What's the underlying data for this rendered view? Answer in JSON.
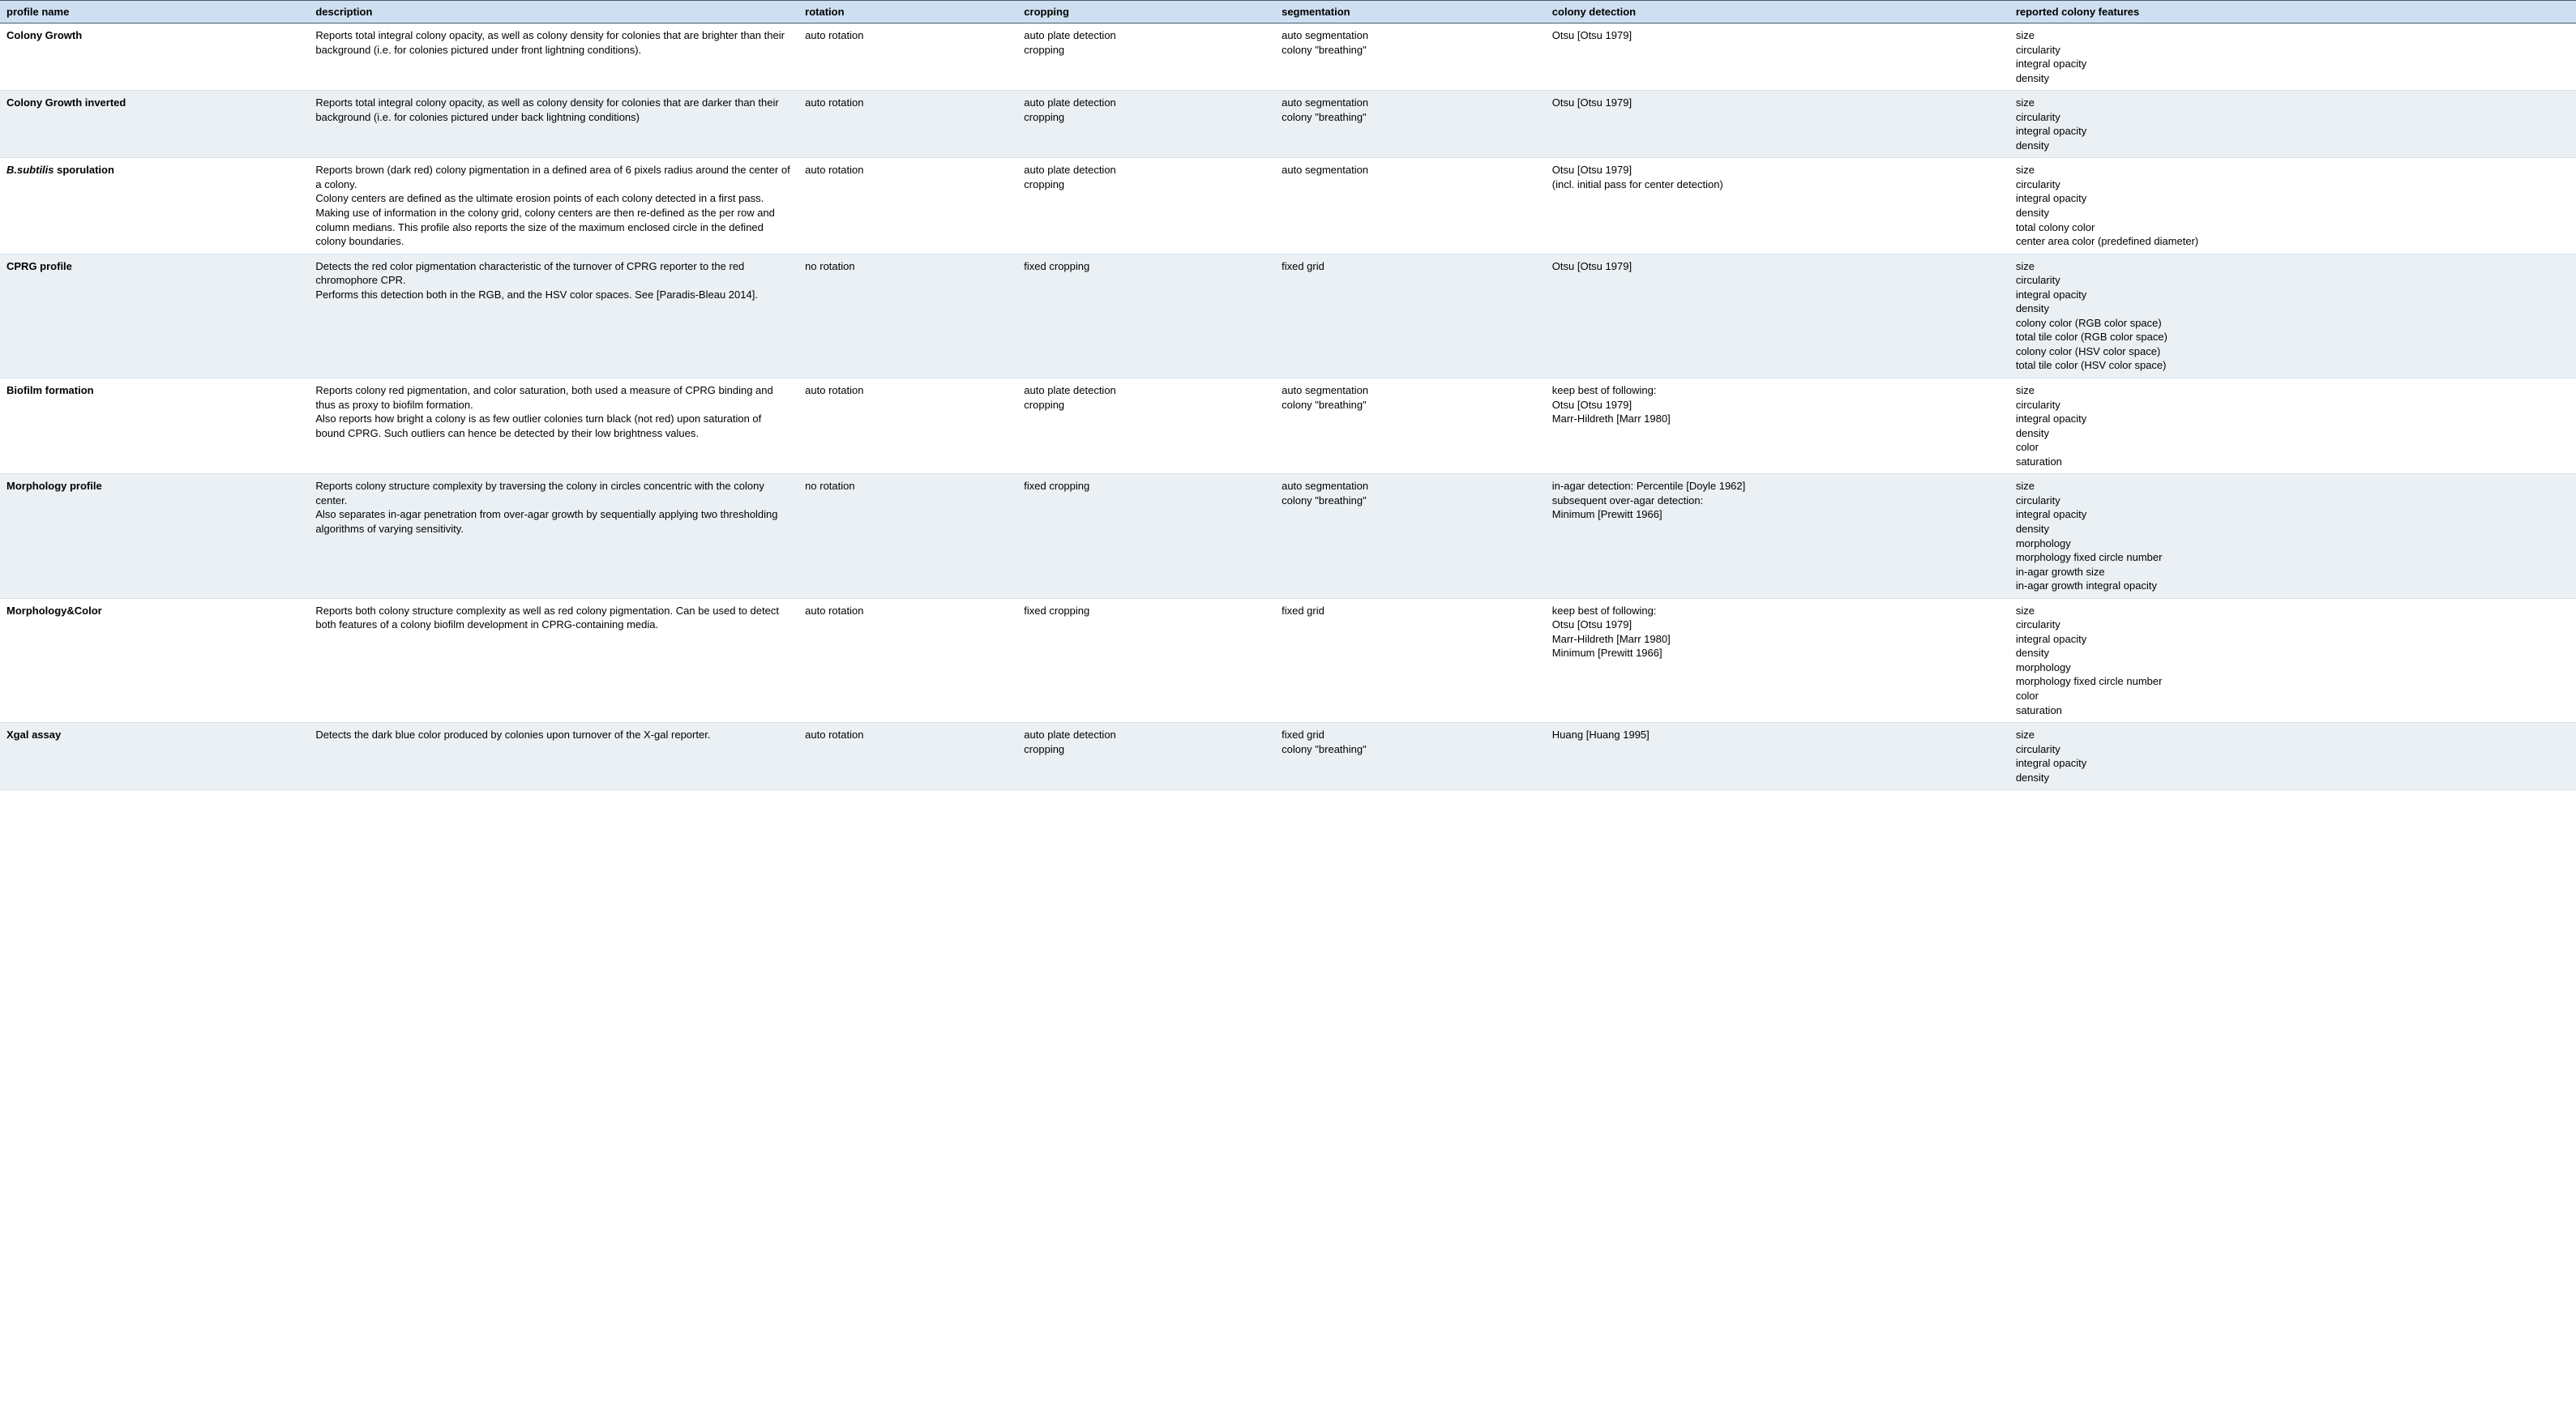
{
  "table": {
    "header_bg": "#cddff0",
    "row_even_bg": "#eaf0f4",
    "row_odd_bg": "#ffffff",
    "border_color": "#4a5a6a",
    "text_color": "#000000",
    "font_family": "Helvetica, Arial, sans-serif",
    "font_size_pt": 10,
    "columns": [
      {
        "key": "name",
        "label": "profile name",
        "width_pct": 12
      },
      {
        "key": "desc",
        "label": "description",
        "width_pct": 19
      },
      {
        "key": "rotation",
        "label": "rotation",
        "width_pct": 8.5
      },
      {
        "key": "cropping",
        "label": "cropping",
        "width_pct": 10
      },
      {
        "key": "seg",
        "label": "segmentation",
        "width_pct": 10.5
      },
      {
        "key": "det",
        "label": "colony detection",
        "width_pct": 18
      },
      {
        "key": "features",
        "label": "reported colony features",
        "width_pct": 22
      }
    ],
    "rows": [
      {
        "name": "Colony Growth",
        "desc": "Reports total integral colony opacity, as well as colony density for colonies that are brighter than their background (i.e. for colonies pictured under front lightning conditions).",
        "rotation": "auto rotation",
        "cropping": "auto plate detection\ncropping",
        "seg": "auto segmentation\ncolony \"breathing\"",
        "det": "Otsu [Otsu 1979]",
        "features": "size\ncircularity\nintegral opacity\ndensity"
      },
      {
        "name": "Colony Growth inverted",
        "desc": "Reports total integral colony opacity, as well as colony density for colonies that are darker than their background (i.e. for colonies pictured under back lightning conditions)",
        "rotation": "auto rotation",
        "cropping": "auto plate detection\ncropping",
        "seg": "auto segmentation\ncolony \"breathing\"",
        "det": "Otsu [Otsu 1979]",
        "features": "size\ncircularity\nintegral opacity\ndensity"
      },
      {
        "name_html": "<span class=\"ital\">B.subtilis</span> sporulation",
        "name": "B.subtilis sporulation",
        "desc": "Reports brown (dark red) colony pigmentation in a defined area of 6 pixels radius around the center of a colony.\nColony centers are defined as the ultimate erosion points of each colony detected in a first pass. Making use of information in the colony grid, colony centers are then re-defined as the per row and column medians. This profile also reports the size of the maximum enclosed circle in the defined colony boundaries.",
        "rotation": "auto rotation",
        "cropping": "auto plate detection\ncropping",
        "seg": "auto segmentation",
        "det": "Otsu [Otsu 1979]\n(incl. initial pass for center detection)",
        "features": "size\ncircularity\nintegral opacity\ndensity\ntotal colony color\ncenter area color (predefined diameter)"
      },
      {
        "name": "CPRG profile",
        "desc": "Detects the red color pigmentation characteristic of the turnover of CPRG reporter to the red chromophore CPR.\nPerforms this detection both in the RGB, and the HSV color spaces. See [Paradis-Bleau 2014].",
        "rotation": "no rotation",
        "cropping": "fixed cropping",
        "seg": "fixed grid",
        "det": "Otsu [Otsu 1979]",
        "features": "size\ncircularity\nintegral opacity\ndensity\ncolony color (RGB color space)\ntotal tile color (RGB color space)\ncolony color (HSV color space)\ntotal tile color (HSV color space)"
      },
      {
        "name": "Biofilm formation",
        "desc": "Reports colony red pigmentation, and color saturation, both used a measure of CPRG binding and thus as proxy to biofilm formation.\nAlso reports how bright a colony is as few outlier colonies turn black (not red) upon saturation of bound CPRG. Such outliers can hence be detected by their low brightness values.",
        "rotation": "auto rotation",
        "cropping": "auto plate detection\ncropping",
        "seg": "auto segmentation\ncolony \"breathing\"",
        "det": "keep best of following:\nOtsu [Otsu 1979]\nMarr-Hildreth [Marr 1980]",
        "features": "size\ncircularity\nintegral opacity\ndensity\ncolor\nsaturation"
      },
      {
        "name": "Morphology profile",
        "desc": "Reports colony structure complexity by traversing the colony in circles concentric with the colony center.\nAlso separates in-agar penetration from over-agar growth by sequentially applying two thresholding algorithms of varying sensitivity.",
        "rotation": "no rotation",
        "cropping": "fixed cropping",
        "seg": "auto segmentation\ncolony \"breathing\"",
        "det": "in-agar detection: Percentile [Doyle 1962]\nsubsequent over-agar detection:\nMinimum [Prewitt 1966]",
        "features": "size\ncircularity\nintegral opacity\ndensity\nmorphology\nmorphology fixed circle number\nin-agar growth size\nin-agar growth integral opacity"
      },
      {
        "name": "Morphology&Color",
        "desc": "Reports both colony structure complexity as well as red colony pigmentation. Can be used to detect both features of a colony biofilm development in CPRG-containing media.",
        "rotation": "auto rotation",
        "cropping": "fixed cropping",
        "seg": "fixed grid",
        "det": "keep best of following:\nOtsu [Otsu 1979]\nMarr-Hildreth [Marr 1980]\nMinimum [Prewitt 1966]",
        "features": "size\ncircularity\nintegral opacity\ndensity\nmorphology\nmorphology fixed circle number\ncolor\nsaturation"
      },
      {
        "name": "Xgal assay",
        "desc": "Detects the dark blue color produced by colonies upon turnover of the X-gal reporter.",
        "rotation": "auto rotation",
        "cropping": "auto plate detection\ncropping",
        "seg": "fixed grid\ncolony \"breathing\"",
        "det": "Huang [Huang 1995]",
        "features": "size\ncircularity\nintegral opacity\ndensity"
      }
    ]
  }
}
